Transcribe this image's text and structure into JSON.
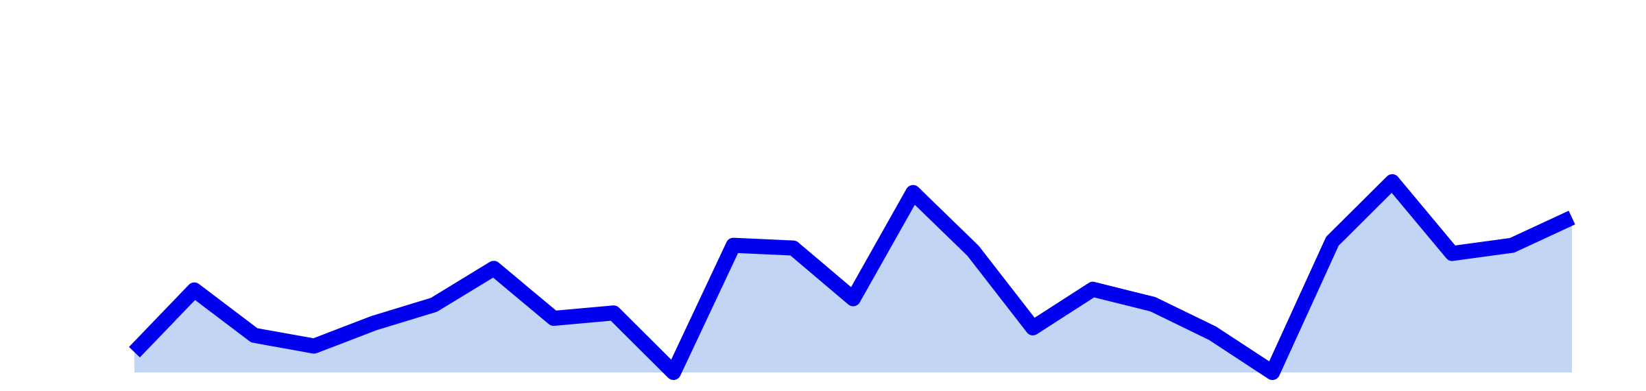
{
  "chart_data": {
    "type": "area",
    "title": "",
    "xlabel": "",
    "ylabel": "",
    "x": [
      0,
      1,
      2,
      3,
      4,
      5,
      6,
      7,
      8,
      9,
      10,
      11,
      12,
      13,
      14,
      15,
      16,
      17,
      18,
      19,
      20,
      21,
      22,
      23,
      24
    ],
    "series": [
      {
        "values": [
          30,
          122,
          55,
          39,
          73,
          100,
          154,
          80,
          88,
          0,
          188,
          184,
          109,
          266,
          180,
          66,
          123,
          101,
          58,
          0,
          194,
          282,
          176,
          188,
          229
        ]
      }
    ],
    "ylim": [
      0,
      500
    ],
    "grid": false,
    "legend": "none",
    "colors": {
      "line": "#0000ee",
      "fill": "#c2d5f5"
    }
  }
}
